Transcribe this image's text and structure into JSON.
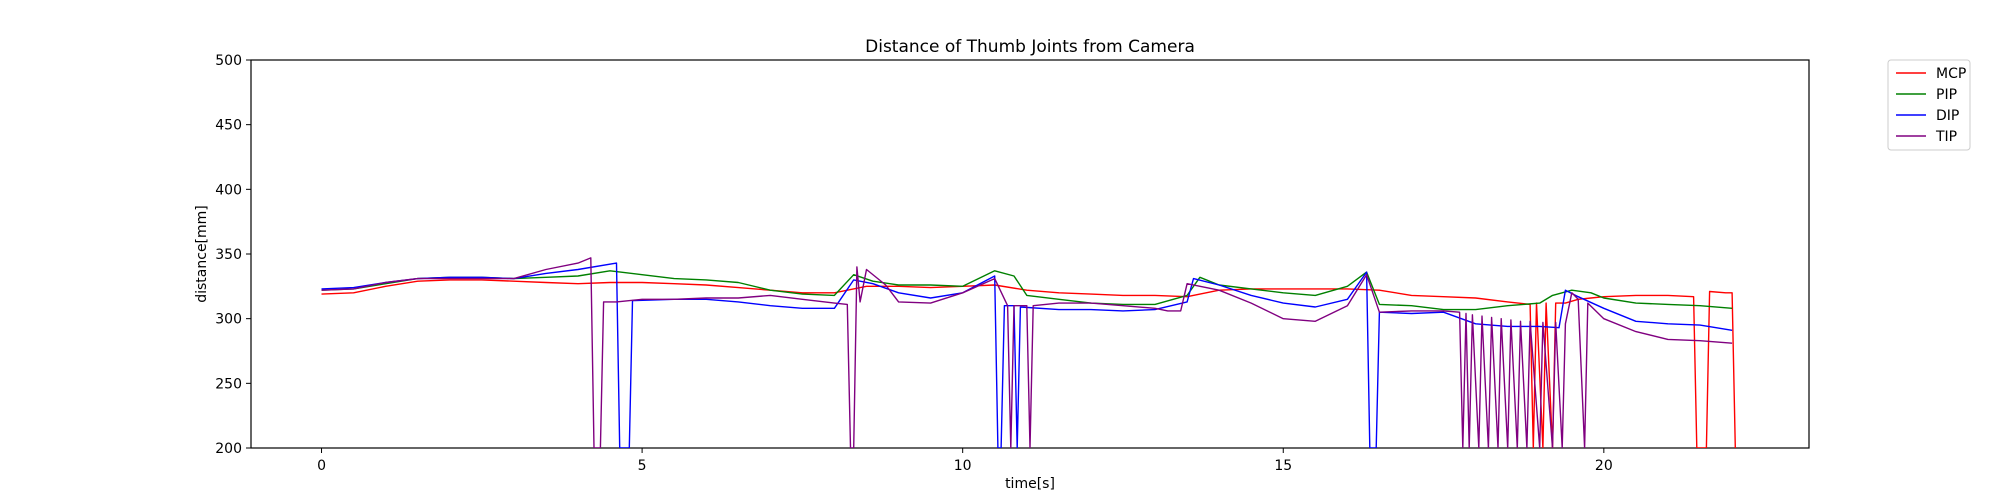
{
  "chart_data": {
    "type": "line",
    "title": "Distance of Thumb Joints from Camera",
    "xlabel": "time[s]",
    "ylabel": "distance[mm]",
    "xlim": [
      -1.1,
      23.2
    ],
    "ylim": [
      200,
      500
    ],
    "xticks": [
      0,
      5,
      10,
      15,
      20
    ],
    "yticks": [
      200,
      250,
      300,
      350,
      400,
      450,
      500
    ],
    "grid": false,
    "legend_position": "outside-top-right",
    "series": [
      {
        "name": "MCP",
        "color": "#ff0000",
        "points": [
          [
            0,
            319
          ],
          [
            0.5,
            320
          ],
          [
            1.0,
            325
          ],
          [
            1.5,
            329
          ],
          [
            2.0,
            330
          ],
          [
            2.5,
            330
          ],
          [
            3.0,
            329
          ],
          [
            3.5,
            328
          ],
          [
            4.0,
            327
          ],
          [
            4.5,
            328
          ],
          [
            5.0,
            328
          ],
          [
            5.5,
            327
          ],
          [
            6.0,
            326
          ],
          [
            6.5,
            324
          ],
          [
            7.0,
            322
          ],
          [
            7.5,
            320
          ],
          [
            8.0,
            320
          ],
          [
            8.5,
            325
          ],
          [
            9.0,
            325
          ],
          [
            9.5,
            324
          ],
          [
            10.0,
            325
          ],
          [
            10.5,
            326
          ],
          [
            11.0,
            322
          ],
          [
            11.5,
            320
          ],
          [
            12.0,
            319
          ],
          [
            12.5,
            318
          ],
          [
            13.0,
            318
          ],
          [
            13.5,
            317
          ],
          [
            14.0,
            322
          ],
          [
            14.5,
            323
          ],
          [
            15.0,
            323
          ],
          [
            15.5,
            323
          ],
          [
            16.0,
            323
          ],
          [
            16.5,
            322
          ],
          [
            17.0,
            318
          ],
          [
            17.5,
            317
          ],
          [
            18.0,
            316
          ],
          [
            18.5,
            313
          ],
          [
            18.85,
            311
          ],
          [
            18.9,
            200
          ],
          [
            18.95,
            312
          ],
          [
            19.05,
            200
          ],
          [
            19.1,
            312
          ],
          [
            19.2,
            200
          ],
          [
            19.25,
            312
          ],
          [
            19.4,
            312
          ],
          [
            19.6,
            315
          ],
          [
            19.8,
            316
          ],
          [
            20.0,
            317
          ],
          [
            20.5,
            318
          ],
          [
            21.0,
            318
          ],
          [
            21.4,
            317
          ],
          [
            21.45,
            200
          ],
          [
            21.5,
            200
          ],
          [
            21.6,
            200
          ],
          [
            21.65,
            321
          ],
          [
            21.9,
            320
          ],
          [
            22.0,
            320
          ],
          [
            22.05,
            200
          ]
        ]
      },
      {
        "name": "PIP",
        "color": "#008000",
        "points": [
          [
            0,
            322
          ],
          [
            0.5,
            323
          ],
          [
            1.0,
            327
          ],
          [
            1.5,
            331
          ],
          [
            2.0,
            332
          ],
          [
            2.5,
            332
          ],
          [
            3.0,
            331
          ],
          [
            3.5,
            332
          ],
          [
            4.0,
            333
          ],
          [
            4.5,
            337
          ],
          [
            5.0,
            334
          ],
          [
            5.5,
            331
          ],
          [
            6.0,
            330
          ],
          [
            6.5,
            328
          ],
          [
            7.0,
            322
          ],
          [
            7.5,
            319
          ],
          [
            8.0,
            318
          ],
          [
            8.3,
            334
          ],
          [
            8.6,
            329
          ],
          [
            9.0,
            326
          ],
          [
            9.5,
            326
          ],
          [
            10.0,
            325
          ],
          [
            10.5,
            337
          ],
          [
            10.8,
            333
          ],
          [
            11.0,
            318
          ],
          [
            11.5,
            315
          ],
          [
            12.0,
            312
          ],
          [
            12.5,
            311
          ],
          [
            13.0,
            311
          ],
          [
            13.5,
            318
          ],
          [
            13.7,
            332
          ],
          [
            14.0,
            326
          ],
          [
            14.5,
            323
          ],
          [
            15.0,
            320
          ],
          [
            15.5,
            318
          ],
          [
            16.0,
            325
          ],
          [
            16.3,
            336
          ],
          [
            16.5,
            311
          ],
          [
            17.0,
            310
          ],
          [
            17.5,
            307
          ],
          [
            18.0,
            307
          ],
          [
            18.5,
            310
          ],
          [
            19.0,
            312
          ],
          [
            19.2,
            318
          ],
          [
            19.5,
            322
          ],
          [
            19.8,
            320
          ],
          [
            20.0,
            316
          ],
          [
            20.5,
            312
          ],
          [
            21.0,
            311
          ],
          [
            21.5,
            310
          ],
          [
            22.0,
            308
          ]
        ]
      },
      {
        "name": "DIP",
        "color": "#0000ff",
        "points": [
          [
            0,
            323
          ],
          [
            0.5,
            324
          ],
          [
            1.0,
            328
          ],
          [
            1.5,
            331
          ],
          [
            2.0,
            332
          ],
          [
            2.5,
            332
          ],
          [
            3.0,
            331
          ],
          [
            3.5,
            335
          ],
          [
            4.0,
            338
          ],
          [
            4.6,
            343
          ],
          [
            4.65,
            200
          ],
          [
            4.8,
            200
          ],
          [
            4.85,
            314
          ],
          [
            5.5,
            315
          ],
          [
            6.0,
            315
          ],
          [
            6.5,
            313
          ],
          [
            7.0,
            310
          ],
          [
            7.5,
            308
          ],
          [
            8.0,
            308
          ],
          [
            8.3,
            330
          ],
          [
            8.6,
            327
          ],
          [
            9.0,
            320
          ],
          [
            9.5,
            316
          ],
          [
            10.0,
            320
          ],
          [
            10.5,
            333
          ],
          [
            10.55,
            200
          ],
          [
            10.6,
            200
          ],
          [
            10.65,
            310
          ],
          [
            10.8,
            310
          ],
          [
            10.85,
            200
          ],
          [
            10.9,
            309
          ],
          [
            11.5,
            307
          ],
          [
            12.0,
            307
          ],
          [
            12.5,
            306
          ],
          [
            13.0,
            307
          ],
          [
            13.5,
            313
          ],
          [
            13.6,
            331
          ],
          [
            14.0,
            326
          ],
          [
            14.5,
            318
          ],
          [
            15.0,
            312
          ],
          [
            15.5,
            309
          ],
          [
            16.0,
            315
          ],
          [
            16.3,
            336
          ],
          [
            16.35,
            200
          ],
          [
            16.45,
            200
          ],
          [
            16.5,
            305
          ],
          [
            17.0,
            304
          ],
          [
            17.5,
            305
          ],
          [
            18.0,
            296
          ],
          [
            18.5,
            294
          ],
          [
            19.0,
            294
          ],
          [
            19.3,
            293
          ],
          [
            19.4,
            322
          ],
          [
            19.6,
            317
          ],
          [
            20.0,
            308
          ],
          [
            20.5,
            298
          ],
          [
            21.0,
            296
          ],
          [
            21.5,
            295
          ],
          [
            22.0,
            291
          ]
        ]
      },
      {
        "name": "TIP",
        "color": "#800080",
        "points": [
          [
            0,
            322
          ],
          [
            0.5,
            323
          ],
          [
            1.0,
            328
          ],
          [
            1.5,
            331
          ],
          [
            2.0,
            331
          ],
          [
            2.5,
            331
          ],
          [
            3.0,
            331
          ],
          [
            3.5,
            338
          ],
          [
            4.0,
            343
          ],
          [
            4.2,
            347
          ],
          [
            4.25,
            200
          ],
          [
            4.35,
            200
          ],
          [
            4.4,
            313
          ],
          [
            4.6,
            313
          ],
          [
            5.0,
            315
          ],
          [
            5.5,
            315
          ],
          [
            6.0,
            316
          ],
          [
            6.5,
            316
          ],
          [
            7.0,
            318
          ],
          [
            7.5,
            315
          ],
          [
            8.0,
            312
          ],
          [
            8.2,
            311
          ],
          [
            8.25,
            200
          ],
          [
            8.3,
            200
          ],
          [
            8.35,
            340
          ],
          [
            8.4,
            313
          ],
          [
            8.5,
            338
          ],
          [
            8.8,
            326
          ],
          [
            9.0,
            313
          ],
          [
            9.5,
            312
          ],
          [
            10.0,
            320
          ],
          [
            10.5,
            331
          ],
          [
            10.7,
            310
          ],
          [
            10.75,
            200
          ],
          [
            10.8,
            310
          ],
          [
            11.0,
            310
          ],
          [
            11.05,
            200
          ],
          [
            11.1,
            310
          ],
          [
            11.5,
            312
          ],
          [
            12.0,
            312
          ],
          [
            12.5,
            310
          ],
          [
            13.0,
            308
          ],
          [
            13.2,
            306
          ],
          [
            13.4,
            306
          ],
          [
            13.5,
            327
          ],
          [
            14.0,
            322
          ],
          [
            14.5,
            312
          ],
          [
            15.0,
            300
          ],
          [
            15.5,
            298
          ],
          [
            16.0,
            310
          ],
          [
            16.3,
            334
          ],
          [
            16.5,
            305
          ],
          [
            17.0,
            306
          ],
          [
            17.5,
            306
          ],
          [
            17.75,
            305
          ],
          [
            17.8,
            200
          ],
          [
            17.85,
            304
          ],
          [
            17.9,
            200
          ],
          [
            17.95,
            303
          ],
          [
            18.05,
            200
          ],
          [
            18.1,
            302
          ],
          [
            18.2,
            200
          ],
          [
            18.25,
            301
          ],
          [
            18.35,
            200
          ],
          [
            18.4,
            300
          ],
          [
            18.5,
            200
          ],
          [
            18.55,
            299
          ],
          [
            18.65,
            200
          ],
          [
            18.7,
            298
          ],
          [
            18.8,
            200
          ],
          [
            18.85,
            298
          ],
          [
            19.0,
            200
          ],
          [
            19.05,
            297
          ],
          [
            19.2,
            200
          ],
          [
            19.25,
            297
          ],
          [
            19.35,
            200
          ],
          [
            19.4,
            296
          ],
          [
            19.5,
            320
          ],
          [
            19.6,
            315
          ],
          [
            19.7,
            200
          ],
          [
            19.75,
            312
          ],
          [
            20.0,
            300
          ],
          [
            20.5,
            290
          ],
          [
            21.0,
            284
          ],
          [
            21.5,
            283
          ],
          [
            22.0,
            281
          ]
        ]
      }
    ]
  }
}
